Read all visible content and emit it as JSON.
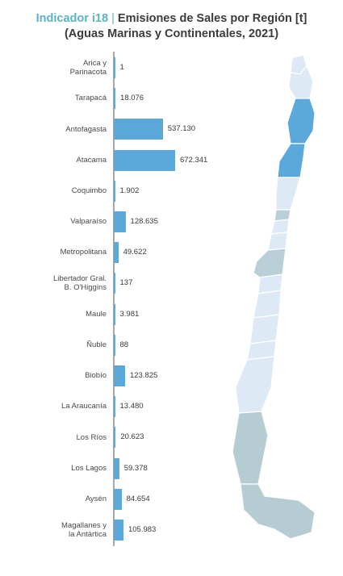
{
  "title": {
    "indicator": "Indicador i18",
    "separator": "|",
    "line1": "Emisiones de Sales por Región [t]",
    "line2": "(Aguas Marinas y Continentales, 2021)"
  },
  "colors": {
    "bar": "#5aa9da",
    "indicator": "#5ab4c4",
    "map_highlight": "#5aa9da",
    "map_light": "#dde9f5",
    "map_mid": "#b9cfd8",
    "map_south": "#b6ccd3"
  },
  "chart_data": {
    "type": "bar",
    "orientation": "horizontal",
    "categories": [
      "Arica y\nParinacota",
      "Tarapacá",
      "Antofagasta",
      "Atacama",
      "Coquimbo",
      "Valparaíso",
      "Metropolitana",
      "Libertador Gral.\nB. O'Higgins",
      "Maule",
      "Ñuble",
      "Biobío",
      "La Araucanía",
      "Los Ríos",
      "Los Lagos",
      "Aysén",
      "Magallanes y\nla Antártica"
    ],
    "values": [
      1,
      18076,
      537130,
      672341,
      1902,
      128635,
      49622,
      137,
      3981,
      88,
      123825,
      13480,
      20623,
      59378,
      84654,
      105983
    ],
    "value_labels": [
      "1",
      "18.076",
      "537.130",
      "672.341",
      "1.902",
      "128.635",
      "49.622",
      "137",
      "3.981",
      "88",
      "123.825",
      "13.480",
      "20.623",
      "59.378",
      "84.654",
      "105.983"
    ],
    "xlim": [
      0,
      672341
    ],
    "grid": false,
    "legend": "none"
  }
}
